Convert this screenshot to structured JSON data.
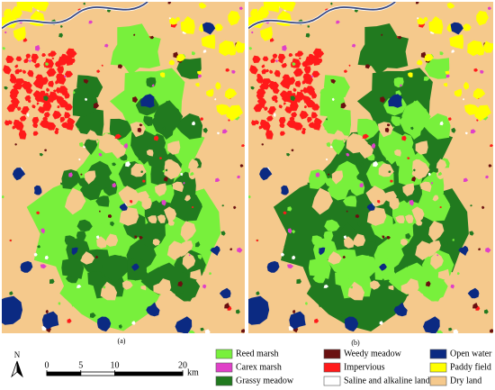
{
  "panels": [
    {
      "label": "(a)"
    },
    {
      "label": "(b)"
    }
  ],
  "north_arrow": "N",
  "scale_bar": {
    "ticks": [
      0,
      5,
      10,
      20
    ],
    "unit": "km"
  },
  "legend": [
    {
      "label": "Reed marsh",
      "color": "#78f03c"
    },
    {
      "label": "Carex marsh",
      "color": "#e040c8"
    },
    {
      "label": "Grassy meadow",
      "color": "#217a1f"
    },
    {
      "label": "Weedy meadow",
      "color": "#6a1010"
    },
    {
      "label": "Impervious",
      "color": "#ff1a1a"
    },
    {
      "label": "Saline and alkaline land",
      "color": "#ffffff"
    },
    {
      "label": "Open water",
      "color": "#0b2a82"
    },
    {
      "label": "Paddy field",
      "color": "#ffff00"
    },
    {
      "label": "Dry land",
      "color": "#f5c98c"
    }
  ]
}
